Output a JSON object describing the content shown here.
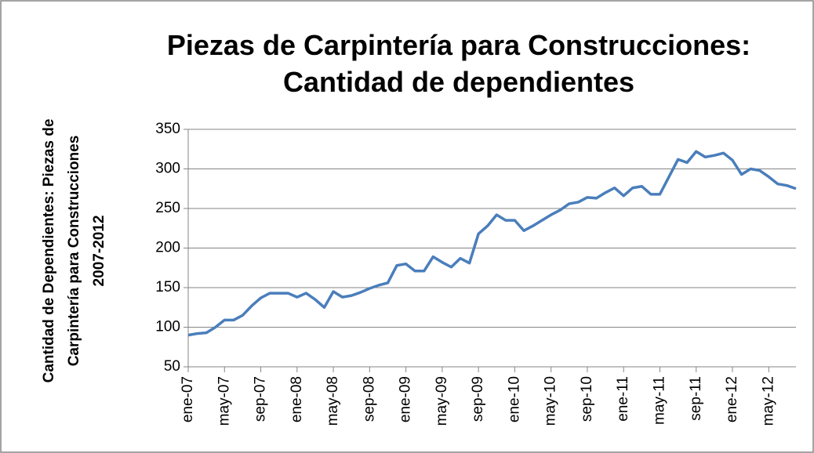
{
  "chart_data": {
    "type": "line",
    "title": [
      "Piezas de Carpintería para Construcciones:",
      "Cantidad de dependientes"
    ],
    "y_label": [
      "Cantidad de Dependientes: Piezas de",
      "Carpintería para Construcciones",
      "2007-2012"
    ],
    "categories": [
      "ene-07",
      null,
      null,
      null,
      "may-07",
      null,
      null,
      null,
      "sep-07",
      null,
      null,
      null,
      "ene-08",
      null,
      null,
      null,
      "may-08",
      null,
      null,
      null,
      "sep-08",
      null,
      null,
      null,
      "ene-09",
      null,
      null,
      null,
      "may-09",
      null,
      null,
      null,
      "sep-09",
      null,
      null,
      null,
      "ene-10",
      null,
      null,
      null,
      "may-10",
      null,
      null,
      null,
      "sep-10",
      null,
      null,
      null,
      "ene-11",
      null,
      null,
      null,
      "may-11",
      null,
      null,
      null,
      "sep-11",
      null,
      null,
      null,
      "ene-12",
      null,
      null,
      null,
      "may-12",
      null,
      null,
      null
    ],
    "series": [
      {
        "name": "Cantidad de dependientes",
        "color": "#4a7ebb",
        "values": [
          90,
          92,
          93,
          100,
          109,
          109,
          115,
          127,
          137,
          143,
          143,
          143,
          138,
          143,
          135,
          125,
          145,
          138,
          140,
          144,
          149,
          153,
          156,
          178,
          180,
          171,
          171,
          189,
          182,
          176,
          187,
          181,
          218,
          228,
          242,
          235,
          235,
          222,
          228,
          235,
          242,
          248,
          256,
          258,
          264,
          263,
          270,
          276,
          266,
          276,
          278,
          268,
          268,
          290,
          312,
          308,
          322,
          315,
          317,
          320,
          311,
          293,
          300,
          298,
          290,
          281,
          279,
          275
        ]
      }
    ],
    "ylim": [
      50,
      350
    ],
    "yticks": [
      50,
      100,
      150,
      200,
      250,
      300,
      350
    ],
    "grid": true
  }
}
